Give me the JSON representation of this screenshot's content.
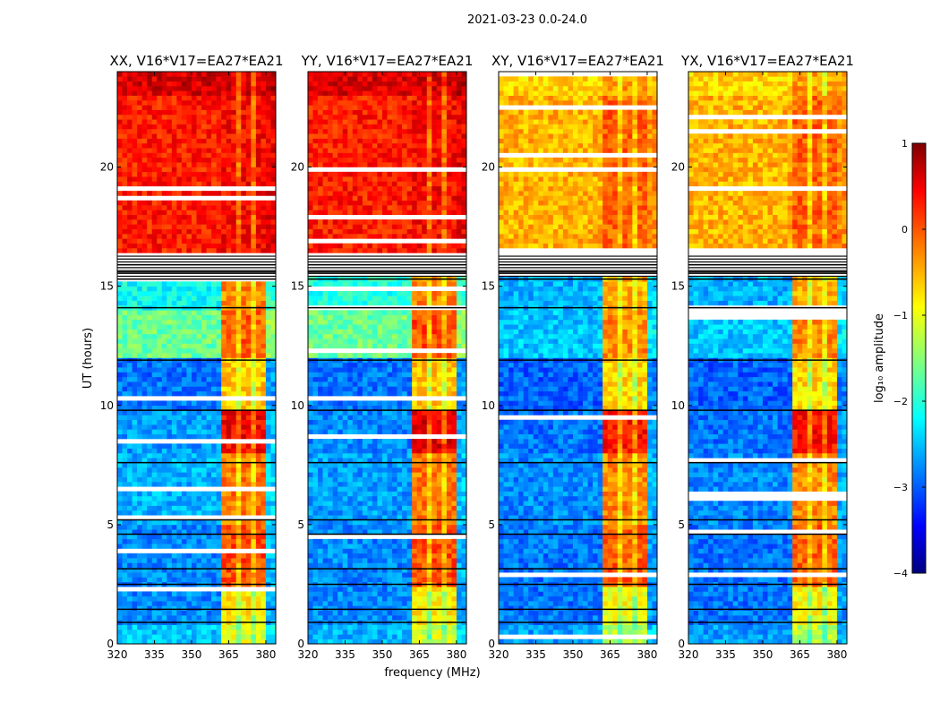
{
  "chart_data": {
    "type": "heatmap",
    "title": "2021-03-23 0.0-24.0",
    "xlabel": "frequency (MHz)",
    "ylabel": "UT (hours)",
    "xlim": [
      320,
      384
    ],
    "ylim": [
      0,
      24
    ],
    "xticks": [
      320,
      335,
      350,
      365,
      380
    ],
    "yticks": [
      0,
      5,
      10,
      15,
      20
    ],
    "band_mhz": [
      362,
      380
    ],
    "flagged_hours": [
      [
        15.3,
        16.3
      ]
    ],
    "black_lines_hours": [
      0.9,
      1.45,
      2.5,
      3.15,
      4.6,
      5.2,
      7.6,
      9.8,
      11.9,
      14.1,
      15.3,
      15.6,
      15.9
    ],
    "colorbar": {
      "label": "log₁₀ amplitude",
      "range": [
        -4,
        1
      ],
      "ticks": [
        "1",
        "0",
        "−1",
        "−2",
        "−3",
        "−4"
      ],
      "tick_values": [
        1,
        0,
        -1,
        -2,
        -3,
        -4
      ]
    },
    "panels": [
      {
        "title": "XX, V16*V17=EA27*EA21",
        "segments": [
          {
            "t": [
              0,
              0.8
            ],
            "bg": -2.4,
            "band": -1.0
          },
          {
            "t": [
              0.8,
              2.5
            ],
            "bg": -2.7,
            "band": -0.8
          },
          {
            "t": [
              2.5,
              5.0
            ],
            "bg": -2.7,
            "band": 0.0
          },
          {
            "t": [
              5.0,
              8.0
            ],
            "bg": -2.5,
            "band": -0.2
          },
          {
            "t": [
              8.0,
              9.8
            ],
            "bg": -2.6,
            "band": 0.4
          },
          {
            "t": [
              9.8,
              12.0
            ],
            "bg": -2.8,
            "band": -0.6
          },
          {
            "t": [
              12.0,
              14.0
            ],
            "bg": -1.6,
            "band": -0.1
          },
          {
            "t": [
              14.0,
              15.3
            ],
            "bg": -2.1,
            "band": -0.3
          },
          {
            "t": [
              16.3,
              23.0
            ],
            "bg": 0.25,
            "band": 0.35
          },
          {
            "t": [
              23.0,
              24.0
            ],
            "bg": 0.55,
            "band": 0.55
          }
        ]
      },
      {
        "title": "YY, V16*V17=EA27*EA21",
        "segments": [
          {
            "t": [
              0,
              0.8
            ],
            "bg": -2.5,
            "band": -1.1
          },
          {
            "t": [
              0.8,
              2.5
            ],
            "bg": -2.7,
            "band": -0.8
          },
          {
            "t": [
              2.5,
              5.0
            ],
            "bg": -2.7,
            "band": 0.0
          },
          {
            "t": [
              5.0,
              8.0
            ],
            "bg": -2.6,
            "band": -0.2
          },
          {
            "t": [
              8.0,
              9.8
            ],
            "bg": -2.7,
            "band": 0.5
          },
          {
            "t": [
              9.8,
              12.0
            ],
            "bg": -2.8,
            "band": -0.6
          },
          {
            "t": [
              12.0,
              14.0
            ],
            "bg": -1.6,
            "band": 0.0
          },
          {
            "t": [
              14.0,
              15.3
            ],
            "bg": -2.0,
            "band": -0.3
          },
          {
            "t": [
              16.3,
              23.0
            ],
            "bg": 0.25,
            "band": 0.35
          },
          {
            "t": [
              23.0,
              24.0
            ],
            "bg": 0.55,
            "band": 0.55
          }
        ]
      },
      {
        "title": "XY, V16*V17=EA27*EA21",
        "segments": [
          {
            "t": [
              0,
              0.8
            ],
            "bg": -2.6,
            "band": -1.2
          },
          {
            "t": [
              0.8,
              2.5
            ],
            "bg": -2.8,
            "band": -0.9
          },
          {
            "t": [
              2.5,
              5.0
            ],
            "bg": -2.8,
            "band": -0.1
          },
          {
            "t": [
              5.0,
              8.0
            ],
            "bg": -2.7,
            "band": -0.3
          },
          {
            "t": [
              8.0,
              9.8
            ],
            "bg": -2.8,
            "band": 0.3
          },
          {
            "t": [
              9.8,
              12.0
            ],
            "bg": -2.9,
            "band": -0.7
          },
          {
            "t": [
              12.0,
              14.0
            ],
            "bg": -2.4,
            "band": -0.3
          },
          {
            "t": [
              14.0,
              15.3
            ],
            "bg": -2.5,
            "band": -0.5
          },
          {
            "t": [
              16.3,
              23.0
            ],
            "bg": -0.5,
            "band": -0.1
          },
          {
            "t": [
              23.0,
              24.0
            ],
            "bg": -0.7,
            "band": -0.4
          }
        ]
      },
      {
        "title": "YX, V16*V17=EA27*EA21",
        "segments": [
          {
            "t": [
              0,
              0.8
            ],
            "bg": -2.6,
            "band": -1.2
          },
          {
            "t": [
              0.8,
              2.5
            ],
            "bg": -2.8,
            "band": -0.9
          },
          {
            "t": [
              2.5,
              5.0
            ],
            "bg": -2.8,
            "band": -0.1
          },
          {
            "t": [
              5.0,
              8.0
            ],
            "bg": -2.7,
            "band": -0.3
          },
          {
            "t": [
              8.0,
              9.8
            ],
            "bg": -2.8,
            "band": 0.3
          },
          {
            "t": [
              9.8,
              12.0
            ],
            "bg": -2.9,
            "band": -0.7
          },
          {
            "t": [
              12.0,
              14.0
            ],
            "bg": -2.4,
            "band": -0.3
          },
          {
            "t": [
              14.0,
              15.3
            ],
            "bg": -2.5,
            "band": -0.5
          },
          {
            "t": [
              16.3,
              23.0
            ],
            "bg": -0.5,
            "band": -0.1
          },
          {
            "t": [
              23.0,
              24.0
            ],
            "bg": -0.7,
            "band": -0.4
          }
        ]
      }
    ]
  }
}
